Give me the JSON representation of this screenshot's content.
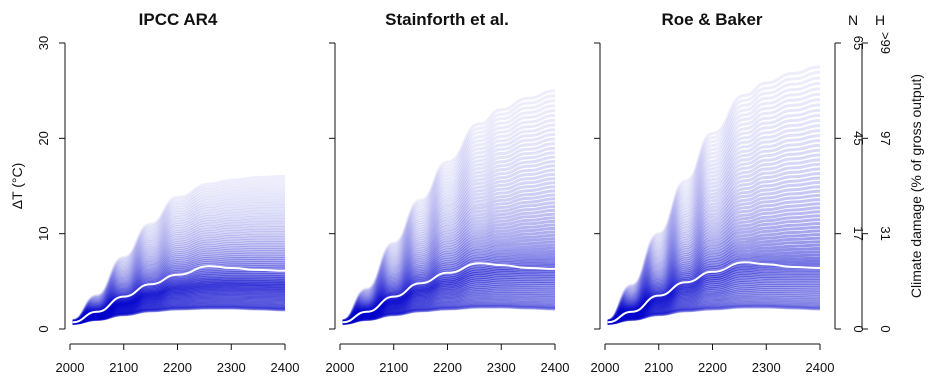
{
  "chart_data": {
    "type": "line",
    "y_left": {
      "label": "ΔT (°C)",
      "range": [
        0,
        30
      ],
      "ticks": [
        0,
        10,
        20,
        30
      ]
    },
    "x_axis": {
      "range": [
        2000,
        2400
      ],
      "ticks": [
        2000,
        2100,
        2200,
        2300,
        2400
      ]
    },
    "y_right": {
      "label": "Climate damage (% of gross output)",
      "axes": [
        {
          "name": "N",
          "ticks": [
            {
              "label": "0",
              "at": 0
            },
            {
              "label": "17",
              "at": 10
            },
            {
              "label": "45",
              "at": 20
            },
            {
              "label": "65",
              "at": 30
            }
          ]
        },
        {
          "name": "H",
          "ticks": [
            {
              "label": "0",
              "at": 0
            },
            {
              "label": "31",
              "at": 10
            },
            {
              "label": "97",
              "at": 20
            },
            {
              "label": ">99",
              "at": 30
            }
          ]
        }
      ]
    },
    "colors": {
      "ensemble": "#0000cc",
      "median": "#ffffff"
    },
    "panels": [
      {
        "title": "IPCC AR4",
        "median": {
          "x": [
            2005,
            2050,
            2100,
            2150,
            2200,
            2260,
            2300,
            2350,
            2400
          ],
          "y": [
            0.7,
            1.8,
            3.4,
            4.7,
            5.7,
            6.6,
            6.4,
            6.2,
            6.1
          ]
        },
        "envelope": {
          "x": [
            2005,
            2050,
            2100,
            2150,
            2200,
            2260,
            2300,
            2350,
            2400
          ],
          "low": [
            0.6,
            1.0,
            1.5,
            1.9,
            2.1,
            2.2,
            2.2,
            2.1,
            2.0
          ],
          "high": [
            0.9,
            3.5,
            7.5,
            11.0,
            13.8,
            15.2,
            15.6,
            15.9,
            16.0
          ]
        }
      },
      {
        "title": "Stainforth et al.",
        "median": {
          "x": [
            2005,
            2050,
            2100,
            2150,
            2200,
            2260,
            2300,
            2350,
            2400
          ],
          "y": [
            0.7,
            1.8,
            3.4,
            4.8,
            5.9,
            6.9,
            6.7,
            6.4,
            6.3
          ]
        },
        "envelope": {
          "x": [
            2005,
            2050,
            2100,
            2150,
            2200,
            2260,
            2300,
            2350,
            2400
          ],
          "low": [
            0.6,
            1.0,
            1.5,
            1.9,
            2.1,
            2.3,
            2.3,
            2.2,
            2.1
          ],
          "high": [
            0.9,
            4.2,
            9.0,
            13.5,
            17.5,
            21.5,
            23.0,
            24.2,
            25.0
          ]
        }
      },
      {
        "title": "Roe & Baker",
        "median": {
          "x": [
            2005,
            2050,
            2100,
            2150,
            2200,
            2260,
            2300,
            2350,
            2400
          ],
          "y": [
            0.7,
            1.8,
            3.5,
            4.9,
            6.0,
            7.0,
            6.8,
            6.5,
            6.4
          ]
        },
        "envelope": {
          "x": [
            2005,
            2050,
            2100,
            2150,
            2200,
            2260,
            2300,
            2350,
            2400
          ],
          "low": [
            0.6,
            1.0,
            1.5,
            1.9,
            2.1,
            2.3,
            2.3,
            2.2,
            2.1
          ],
          "high": [
            0.9,
            4.6,
            10.0,
            15.5,
            20.5,
            24.5,
            25.8,
            26.8,
            27.5
          ]
        }
      }
    ]
  }
}
